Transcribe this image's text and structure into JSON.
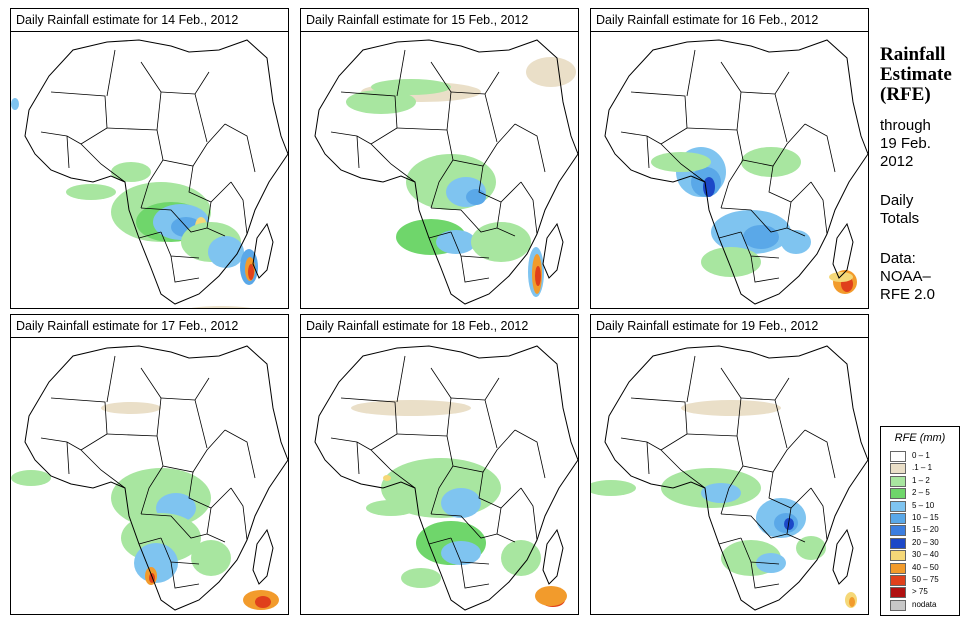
{
  "panels": [
    {
      "title": "Daily Rainfall estimate for  14 Feb., 2012"
    },
    {
      "title": "Daily Rainfall estimate for  15 Feb., 2012"
    },
    {
      "title": "Daily Rainfall estimate for  16 Feb., 2012"
    },
    {
      "title": "Daily Rainfall estimate for  17 Feb., 2012"
    },
    {
      "title": "Daily Rainfall estimate for  18 Feb., 2012"
    },
    {
      "title": "Daily Rainfall estimate for  19 Feb., 2012"
    }
  ],
  "side": {
    "title_line1": "Rainfall",
    "title_line2": "Estimate",
    "title_line3": "(RFE)",
    "through1": "through",
    "through2": "19 Feb.",
    "through3": "2012",
    "daily1": "Daily",
    "daily2": "Totals",
    "data1": "Data:",
    "data2": "NOAA–",
    "data3": "RFE 2.0"
  },
  "legend": {
    "title": "RFE (mm)",
    "items": [
      {
        "label": "0 – 1",
        "color": "#ffffff"
      },
      {
        "label": ".1 – 1",
        "color": "#eadfc8"
      },
      {
        "label": "1 – 2",
        "color": "#a8e6a0"
      },
      {
        "label": "2 – 5",
        "color": "#6fd66b"
      },
      {
        "label": "5 – 10",
        "color": "#7fc4f0"
      },
      {
        "label": "10 – 15",
        "color": "#5aa8e8"
      },
      {
        "label": "15 – 20",
        "color": "#3c7ee0"
      },
      {
        "label": "20 – 30",
        "color": "#1c48c8"
      },
      {
        "label": "30 – 40",
        "color": "#f5d878"
      },
      {
        "label": "40 – 50",
        "color": "#f29b2c"
      },
      {
        "label": "50 – 75",
        "color": "#e0401c"
      },
      {
        "label": "> 75",
        "color": "#b01010"
      },
      {
        "label": "nodata",
        "color": "#c8c8c8"
      }
    ]
  }
}
